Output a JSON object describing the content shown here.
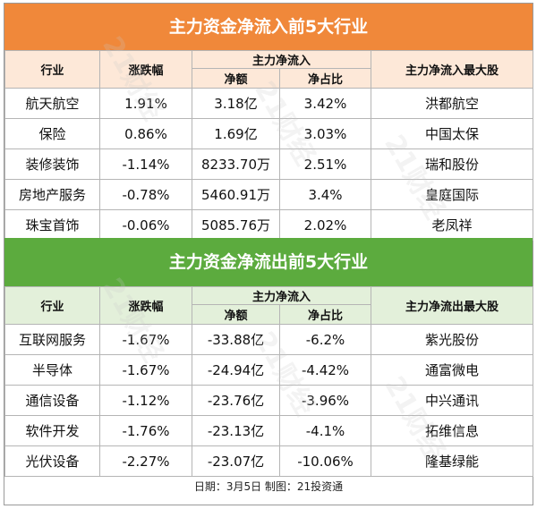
{
  "inflow": {
    "title": "主力资金净流入前5大行业",
    "headers": {
      "industry": "行业",
      "change": "涨跌幅",
      "net_flow_group": "主力净流入",
      "amount": "净额",
      "ratio": "净占比",
      "top_stock": "主力净流入最大股"
    },
    "rows": [
      {
        "industry": "航天航空",
        "change": "1.91%",
        "amount": "3.18亿",
        "ratio": "3.42%",
        "top_stock": "洪都航空"
      },
      {
        "industry": "保险",
        "change": "0.86%",
        "amount": "1.69亿",
        "ratio": "3.03%",
        "top_stock": "中国太保"
      },
      {
        "industry": "装修装饰",
        "change": "-1.14%",
        "amount": "8233.70万",
        "ratio": "2.51%",
        "top_stock": "瑞和股份"
      },
      {
        "industry": "房地产服务",
        "change": "-0.78%",
        "amount": "5460.91万",
        "ratio": "3.4%",
        "top_stock": "皇庭国际"
      },
      {
        "industry": "珠宝首饰",
        "change": "-0.06%",
        "amount": "5085.76万",
        "ratio": "2.02%",
        "top_stock": "老凤祥"
      }
    ]
  },
  "outflow": {
    "title": "主力资金净流出前5大行业",
    "headers": {
      "industry": "行业",
      "change": "涨跌幅",
      "net_flow_group": "主力净流入",
      "amount": "净额",
      "ratio": "净占比",
      "top_stock": "主力净流出最大股"
    },
    "rows": [
      {
        "industry": "互联网服务",
        "change": "-1.67%",
        "amount": "-33.88亿",
        "ratio": "-6.2%",
        "top_stock": "紫光股份"
      },
      {
        "industry": "半导体",
        "change": "-1.67%",
        "amount": "-24.94亿",
        "ratio": "-4.42%",
        "top_stock": "通富微电"
      },
      {
        "industry": "通信设备",
        "change": "-1.12%",
        "amount": "-23.76亿",
        "ratio": "-3.96%",
        "top_stock": "中兴通讯"
      },
      {
        "industry": "软件开发",
        "change": "-1.76%",
        "amount": "-23.13亿",
        "ratio": "-4.1%",
        "top_stock": "拓维信息"
      },
      {
        "industry": "光伏设备",
        "change": "-2.27%",
        "amount": "-23.07亿",
        "ratio": "-10.06%",
        "top_stock": "隆基绿能"
      }
    ]
  },
  "footer": "日期：3月5日 制图：21投资通",
  "watermark": "21财经",
  "colors": {
    "inflow_banner": "#f0883a",
    "outflow_banner": "#5cab3e",
    "inflow_header": "#fde8d8",
    "outflow_header": "#e3f0da"
  }
}
